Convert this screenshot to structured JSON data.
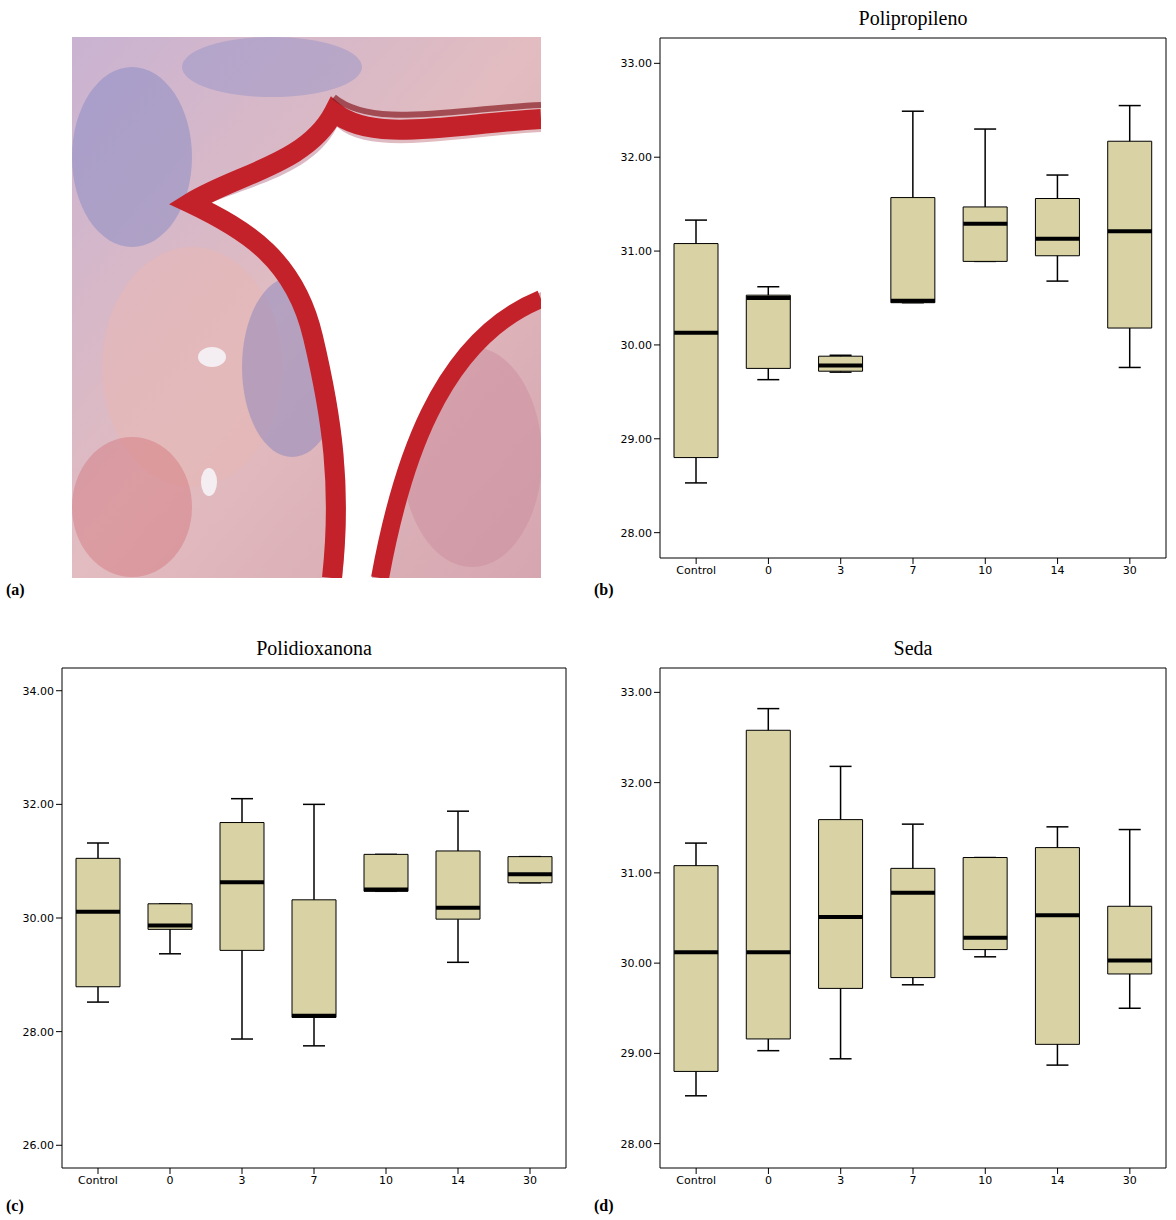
{
  "image": {
    "panel": "(a)"
  },
  "chart_data": [
    {
      "panel": "(b)",
      "type": "box",
      "title": "Polipropileno",
      "categories": [
        "Control",
        "0",
        "3",
        "7",
        "10",
        "14",
        "30"
      ],
      "whisker_low": [
        28.53,
        29.63,
        29.71,
        30.45,
        30.89,
        30.68,
        29.76
      ],
      "q1": [
        28.8,
        29.75,
        29.72,
        30.45,
        30.89,
        30.95,
        30.18
      ],
      "median": [
        30.13,
        30.5,
        29.78,
        30.47,
        31.29,
        31.13,
        31.21
      ],
      "q3": [
        31.08,
        30.53,
        29.88,
        31.57,
        31.47,
        31.56,
        32.17
      ],
      "whisker_high": [
        31.33,
        30.62,
        29.89,
        32.49,
        32.3,
        31.81,
        32.55
      ],
      "color": "#d8d2a4",
      "ylim": [
        27.73,
        33.27
      ],
      "yticks": [
        {
          "value": 28,
          "label": "28.00"
        },
        {
          "value": 29,
          "label": "29.00"
        },
        {
          "value": 30,
          "label": "30.00"
        },
        {
          "value": 31,
          "label": "31.00"
        },
        {
          "value": 32,
          "label": "32.00"
        },
        {
          "value": 33,
          "label": "33.00"
        }
      ]
    },
    {
      "panel": "(c)",
      "type": "box",
      "title": "Polidioxanona",
      "categories": [
        "Control",
        "0",
        "3",
        "7",
        "10",
        "14",
        "30"
      ],
      "whisker_low": [
        28.52,
        29.37,
        27.87,
        27.75,
        30.47,
        29.22,
        30.62
      ],
      "q1": [
        28.79,
        29.8,
        29.43,
        28.25,
        30.47,
        29.98,
        30.62
      ],
      "median": [
        30.11,
        29.87,
        30.63,
        28.28,
        30.5,
        30.18,
        30.77
      ],
      "q3": [
        31.05,
        30.25,
        31.68,
        30.32,
        31.12,
        31.18,
        31.08
      ],
      "whisker_high": [
        31.32,
        30.25,
        32.1,
        32.0,
        31.12,
        31.88,
        31.08
      ],
      "color": "#d8d2a4",
      "ylim": [
        25.6,
        34.4
      ],
      "yticks": [
        {
          "value": 26,
          "label": "26.00"
        },
        {
          "value": 28,
          "label": "28.00"
        },
        {
          "value": 30,
          "label": "30.00"
        },
        {
          "value": 32,
          "label": "32.00"
        },
        {
          "value": 34,
          "label": "34.00"
        }
      ]
    },
    {
      "panel": "(d)",
      "type": "box",
      "title": "Seda",
      "categories": [
        "Control",
        "0",
        "3",
        "7",
        "10",
        "14",
        "30"
      ],
      "whisker_low": [
        28.53,
        29.03,
        28.94,
        29.76,
        30.07,
        28.87,
        29.5
      ],
      "q1": [
        28.8,
        29.16,
        29.72,
        29.84,
        30.15,
        29.1,
        29.88
      ],
      "median": [
        30.12,
        30.12,
        30.51,
        30.78,
        30.28,
        30.53,
        30.03
      ],
      "q3": [
        31.08,
        32.58,
        31.59,
        31.05,
        31.17,
        31.28,
        30.63
      ],
      "whisker_high": [
        31.33,
        32.82,
        32.18,
        31.54,
        31.17,
        31.51,
        31.48
      ],
      "color": "#d8d2a4",
      "ylim": [
        27.73,
        33.27
      ],
      "yticks": [
        {
          "value": 28,
          "label": "28.00"
        },
        {
          "value": 29,
          "label": "29.00"
        },
        {
          "value": 30,
          "label": "30.00"
        },
        {
          "value": 31,
          "label": "31.00"
        },
        {
          "value": 32,
          "label": "32.00"
        },
        {
          "value": 33,
          "label": "33.00"
        }
      ]
    }
  ]
}
